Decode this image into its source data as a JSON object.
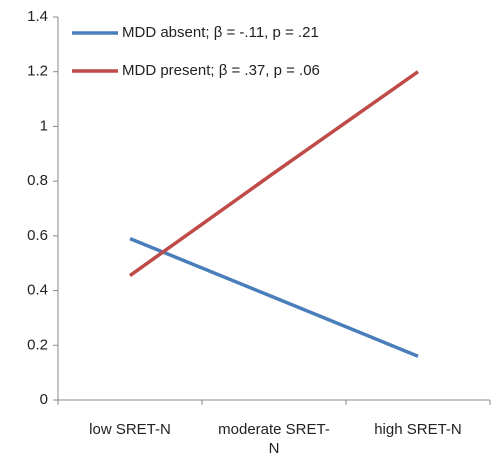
{
  "chart_data": {
    "type": "line",
    "categories": [
      "low SRET-N",
      "moderate SRET-N",
      "high SRET-N"
    ],
    "series": [
      {
        "name": "MDD absent; β = -.11, p = .21",
        "color": "#4a7ebb",
        "values": [
          0.59,
          0.375,
          0.16
        ]
      },
      {
        "name": "MDD present; β = .37, p = .06",
        "color": "#be4b48",
        "values": [
          0.455,
          0.83,
          1.2
        ]
      }
    ],
    "ylim": [
      0,
      1.4
    ],
    "yticks": [
      0,
      0.2,
      0.4,
      0.6,
      0.8,
      1,
      1.2,
      1.4
    ],
    "grid": false
  }
}
